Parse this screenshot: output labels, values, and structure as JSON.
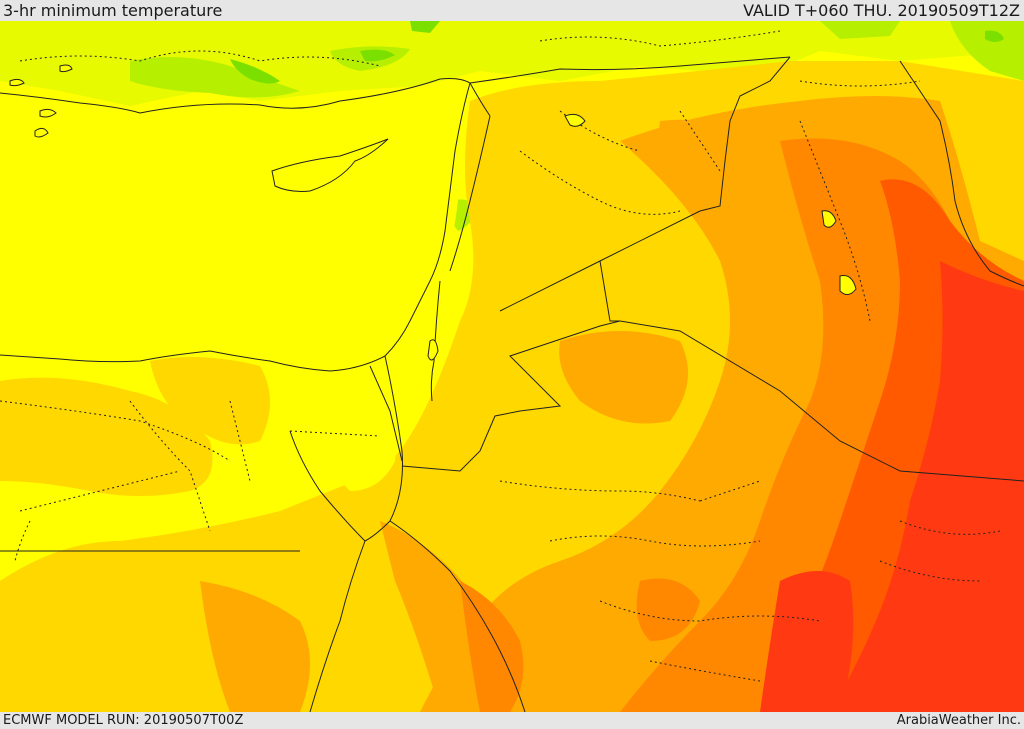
{
  "header": {
    "title": "3-hr minimum temperature",
    "valid": "VALID T+060 THU. 20190509T12Z"
  },
  "footer": {
    "model_run": "ECMWF MODEL RUN: 20190507T00Z",
    "credit": "ArabiaWeather Inc."
  },
  "colors": {
    "green": "#7be000",
    "light_green": "#b6f000",
    "yellow_green": "#e0f800",
    "yellow": "#ffff00",
    "gold": "#ffd800",
    "orange_light": "#ffaa00",
    "orange": "#ff8800",
    "red_orange": "#ff5a00",
    "red": "#ff3a12"
  }
}
